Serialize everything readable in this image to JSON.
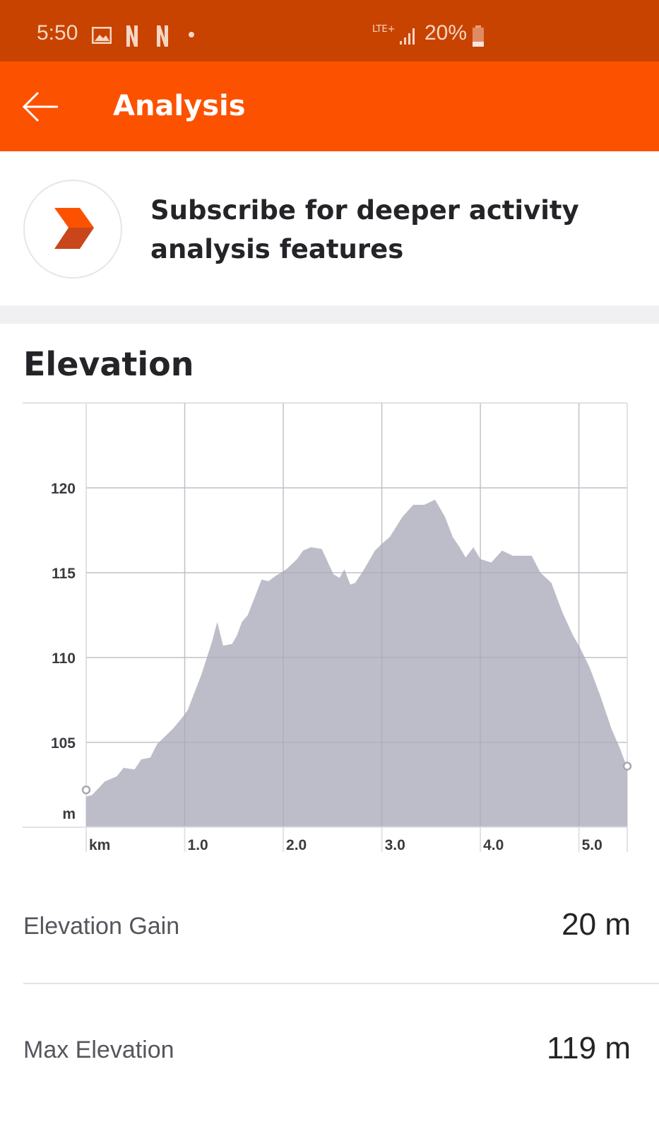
{
  "status_bar": {
    "time": "5:50",
    "network": "LTE+",
    "battery": "20%",
    "icons": [
      "image-icon",
      "netflix-icon",
      "netflix-icon",
      "dot-icon",
      "signal-icon",
      "battery-icon"
    ]
  },
  "header": {
    "title": "Analysis",
    "back_icon": "arrow-left-icon"
  },
  "banner": {
    "text": "Subscribe for deeper activity analysis features",
    "icon": "strava-summit-chevron-icon"
  },
  "colors": {
    "status_bar": "#C84300",
    "header": "#FC5200",
    "area_fill": "#B9B9C6",
    "logo_top": "#FC5200",
    "logo_bottom": "#C9461A"
  },
  "section": {
    "title": "Elevation"
  },
  "chart_data": {
    "type": "area",
    "xlabel": "km",
    "ylabel": "m",
    "xlim": [
      0,
      5.49
    ],
    "ylim": [
      100,
      125
    ],
    "x_ticks": [
      {
        "v": 0,
        "label": "km"
      },
      {
        "v": 1,
        "label": "1.0"
      },
      {
        "v": 2,
        "label": "2.0"
      },
      {
        "v": 3,
        "label": "3.0"
      },
      {
        "v": 4,
        "label": "4.0"
      },
      {
        "v": 5,
        "label": "5.0"
      }
    ],
    "y_ticks": [
      {
        "v": 100,
        "label": "m"
      },
      {
        "v": 105,
        "label": "105"
      },
      {
        "v": 110,
        "label": "110"
      },
      {
        "v": 115,
        "label": "115"
      },
      {
        "v": 120,
        "label": "120"
      }
    ],
    "grid": true,
    "start_marker": [
      0,
      102.2
    ],
    "end_marker": [
      5.49,
      103.6
    ],
    "x": [
      0,
      0.06,
      0.19,
      0.31,
      0.38,
      0.49,
      0.56,
      0.65,
      0.72,
      0.88,
      0.98,
      1.03,
      1.17,
      1.28,
      1.33,
      1.39,
      1.48,
      1.53,
      1.58,
      1.64,
      1.78,
      1.85,
      1.92,
      2.03,
      2.14,
      2.2,
      2.28,
      2.39,
      2.51,
      2.57,
      2.62,
      2.68,
      2.73,
      2.82,
      2.93,
      3.0,
      3.08,
      3.21,
      3.32,
      3.43,
      3.54,
      3.64,
      3.72,
      3.79,
      3.85,
      3.93,
      4.0,
      4.11,
      4.22,
      4.33,
      4.43,
      4.52,
      4.61,
      4.72,
      4.83,
      4.94,
      5.01,
      5.11,
      5.22,
      5.33,
      5.42,
      5.49
    ],
    "y": [
      101.8,
      101.9,
      102.7,
      103.0,
      103.5,
      103.4,
      104.0,
      104.1,
      104.9,
      105.8,
      106.5,
      106.9,
      109.0,
      111.0,
      112.1,
      110.7,
      110.8,
      111.3,
      112.1,
      112.5,
      114.6,
      114.5,
      114.8,
      115.2,
      115.8,
      116.3,
      116.5,
      116.4,
      114.9,
      114.7,
      115.2,
      114.3,
      114.4,
      115.2,
      116.3,
      116.7,
      117.1,
      118.3,
      119.0,
      119.0,
      119.3,
      118.3,
      117.1,
      116.5,
      115.9,
      116.5,
      115.8,
      115.6,
      116.3,
      116.0,
      116.0,
      116.0,
      115.0,
      114.4,
      112.7,
      111.3,
      110.6,
      109.4,
      107.7,
      105.8,
      104.6,
      103.5
    ]
  },
  "stats": [
    {
      "label": "Elevation Gain",
      "value": "20 m"
    },
    {
      "label": "Max Elevation",
      "value": "119 m"
    }
  ]
}
